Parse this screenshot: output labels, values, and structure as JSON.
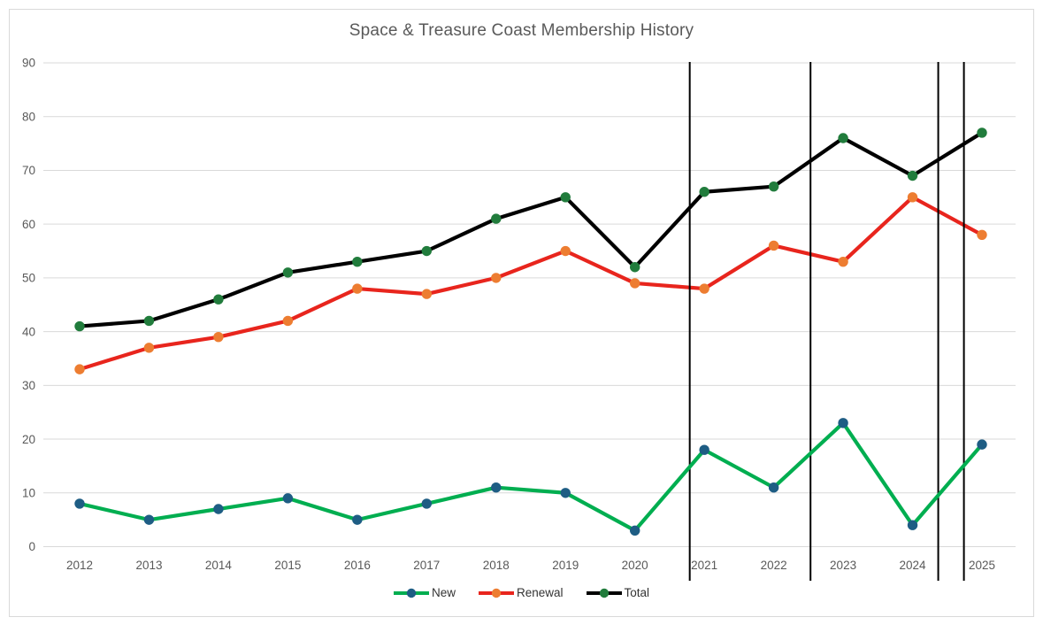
{
  "colors": {
    "background": "#FFFFFF",
    "canvas_border": "#D9D9D9",
    "grid": "#D9D9D9",
    "axis_text": "#595959",
    "title_text": "#595959",
    "legend_text": "#333333",
    "annotation_line": "#000000"
  },
  "chart_data": {
    "type": "line",
    "title": "Space & Treasure Coast Membership History",
    "categories": [
      "2012",
      "2013",
      "2014",
      "2015",
      "2016",
      "2017",
      "2018",
      "2019",
      "2020",
      "2021",
      "2022",
      "2023",
      "2024",
      "2025"
    ],
    "series": [
      {
        "name": "New",
        "values": [
          8,
          5,
          7,
          9,
          5,
          8,
          11,
          10,
          3,
          18,
          11,
          23,
          4,
          19
        ],
        "line_color": "#00AE50",
        "marker_color": "#1E5D84"
      },
      {
        "name": "Renewal",
        "values": [
          33,
          37,
          39,
          42,
          48,
          47,
          50,
          55,
          49,
          48,
          56,
          53,
          65,
          58
        ],
        "line_color": "#E8251D",
        "marker_color": "#ED7D31"
      },
      {
        "name": "Total",
        "values": [
          41,
          42,
          46,
          51,
          53,
          55,
          61,
          65,
          52,
          66,
          67,
          76,
          69,
          77
        ],
        "line_color": "#000000",
        "marker_color": "#217C3C"
      }
    ],
    "xlabel": "",
    "ylabel": "",
    "ylim": [
      0,
      90
    ],
    "yticks": [
      0,
      10,
      20,
      30,
      40,
      50,
      60,
      70,
      80,
      90
    ],
    "grid": true,
    "legend_position": "bottom",
    "annotations": {
      "vertical_lines": {
        "color": "#000000",
        "positions_category_index": [
          8.79,
          10.53,
          12.37,
          12.74
        ],
        "note": "thin black vertical rules spanning the plot height, drawn above the Renewal/Total lines and beneath the New line"
      }
    }
  }
}
